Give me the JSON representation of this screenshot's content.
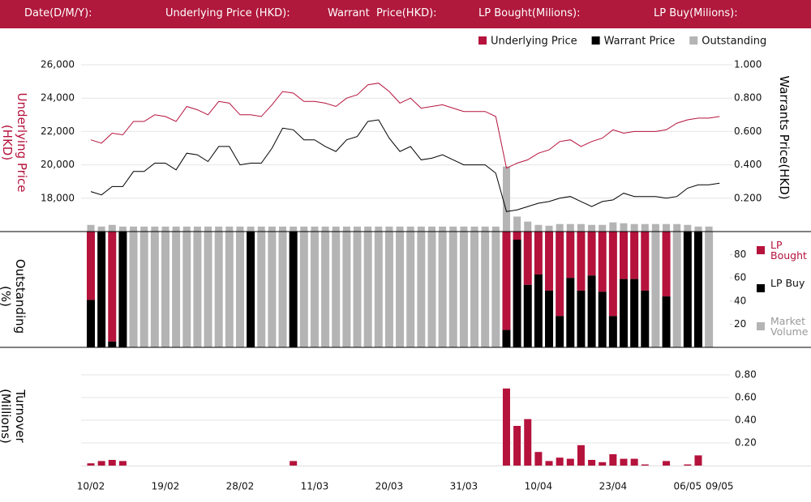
{
  "header": {
    "labels": [
      "Date(D/M/Y):",
      "Underlying Price (HKD):",
      "Warrant  Price(HKD):",
      "LP Bought(Milions):",
      "LP Buy(Milions):"
    ]
  },
  "chart_data": [
    {
      "type": "line",
      "y_label": "Underlying Price (HKD)",
      "y2_label": "Warrants  Price(HKD)",
      "legend": "top-right",
      "grid": true,
      "ylim": [
        16000,
        26000
      ],
      "yticks": [
        {
          "value": 18000,
          "label": "18,000"
        },
        {
          "value": 20000,
          "label": "20,000"
        },
        {
          "value": 22000,
          "label": "22,000"
        },
        {
          "value": 24000,
          "label": "24,000"
        },
        {
          "value": 26000,
          "label": "26,000"
        }
      ],
      "y2lim": [
        0,
        1.0
      ],
      "y2ticks": [
        {
          "value": 0.2,
          "label": "0.200"
        },
        {
          "value": 0.4,
          "label": "0.400"
        },
        {
          "value": 0.6,
          "label": "0.600"
        },
        {
          "value": 0.8,
          "label": "0.800"
        },
        {
          "value": 1.0,
          "label": "1.000"
        }
      ],
      "series": [
        {
          "name": "Underlying Price",
          "color": "#b5123c",
          "values": [
            21500,
            21300,
            21900,
            21800,
            22600,
            22600,
            23000,
            22900,
            22600,
            23500,
            23300,
            23000,
            23800,
            23700,
            23000,
            23000,
            22900,
            23600,
            24400,
            24300,
            23800,
            23800,
            23700,
            23500,
            24000,
            24200,
            24800,
            24900,
            24400,
            23700,
            24000,
            23400,
            23500,
            23600,
            23400,
            23200,
            23200,
            23200,
            22900,
            19800,
            20100,
            20300,
            20700,
            20900,
            21400,
            21500,
            21100,
            21400,
            21600,
            22100,
            21900,
            22000,
            22000,
            22000,
            22100,
            22500,
            22700,
            22800,
            22800,
            22900
          ]
        },
        {
          "name": "Warrant  Price",
          "color": "#000000",
          "axis": "y2",
          "values": [
            0.24,
            0.22,
            0.27,
            0.27,
            0.36,
            0.36,
            0.41,
            0.41,
            0.37,
            0.47,
            0.46,
            0.42,
            0.51,
            0.51,
            0.4,
            0.41,
            0.41,
            0.5,
            0.62,
            0.61,
            0.55,
            0.55,
            0.51,
            0.48,
            0.55,
            0.57,
            0.66,
            0.67,
            0.56,
            0.48,
            0.51,
            0.43,
            0.44,
            0.46,
            0.43,
            0.4,
            0.4,
            0.4,
            0.35,
            0.12,
            0.13,
            0.15,
            0.17,
            0.18,
            0.2,
            0.21,
            0.18,
            0.15,
            0.18,
            0.19,
            0.23,
            0.21,
            0.21,
            0.21,
            0.2,
            0.21,
            0.26,
            0.28,
            0.28,
            0.29
          ]
        },
        {
          "name": "Outstanding",
          "color": "#b4b4b4",
          "axis": "y2",
          "type": "bar",
          "values": [
            0.04,
            0.03,
            0.04,
            0.03,
            0.03,
            0.03,
            0.03,
            0.03,
            0.03,
            0.03,
            0.03,
            0.03,
            0.03,
            0.03,
            0.03,
            0.03,
            0.03,
            0.03,
            0.03,
            0.03,
            0.03,
            0.03,
            0.03,
            0.03,
            0.03,
            0.03,
            0.03,
            0.03,
            0.03,
            0.03,
            0.03,
            0.03,
            0.03,
            0.03,
            0.03,
            0.03,
            0.03,
            0.03,
            0.03,
            0.39,
            0.09,
            0.06,
            0.04,
            0.035,
            0.045,
            0.045,
            0.045,
            0.04,
            0.04,
            0.055,
            0.05,
            0.045,
            0.045,
            0.045,
            0.045,
            0.045,
            0.04,
            0.03,
            0.03,
            null
          ]
        }
      ]
    },
    {
      "type": "stacked_bar",
      "y_label": "Outstanding (%)",
      "legend": "right",
      "ylim": [
        0,
        100
      ],
      "yticks": [
        20,
        40,
        60,
        80
      ],
      "series": [
        {
          "name": "LP Bought",
          "color": "#b5123c",
          "values": [
            59,
            0,
            95,
            0,
            0,
            0,
            0,
            0,
            0,
            0,
            0,
            0,
            0,
            0,
            0,
            0,
            0,
            0,
            0,
            0,
            0,
            0,
            0,
            0,
            0,
            0,
            0,
            0,
            0,
            0,
            0,
            0,
            0,
            0,
            0,
            0,
            0,
            0,
            0,
            85,
            7,
            46,
            37,
            51,
            73,
            40,
            51,
            38,
            52,
            73,
            41,
            41,
            51,
            0,
            56,
            0,
            0,
            0,
            0,
            null
          ]
        },
        {
          "name": "LP Buy",
          "color": "#000000",
          "values": [
            41,
            100,
            5,
            100,
            0,
            0,
            0,
            0,
            0,
            0,
            0,
            0,
            0,
            0,
            0,
            100,
            0,
            0,
            0,
            100,
            0,
            0,
            0,
            0,
            0,
            0,
            0,
            0,
            0,
            0,
            0,
            0,
            0,
            0,
            0,
            0,
            0,
            0,
            0,
            15,
            93,
            54,
            63,
            49,
            27,
            60,
            49,
            62,
            48,
            27,
            59,
            59,
            49,
            0,
            44,
            0,
            100,
            100,
            0,
            null
          ]
        },
        {
          "name": "Market Volume",
          "color": "#b4b4b4",
          "values": [
            0,
            0,
            0,
            0,
            100,
            100,
            100,
            100,
            100,
            100,
            100,
            100,
            100,
            100,
            100,
            0,
            100,
            100,
            100,
            0,
            100,
            100,
            100,
            100,
            100,
            100,
            100,
            100,
            100,
            100,
            100,
            100,
            100,
            100,
            100,
            100,
            100,
            100,
            100,
            0,
            0,
            0,
            0,
            0,
            0,
            0,
            0,
            0,
            0,
            0,
            0,
            0,
            0,
            100,
            0,
            100,
            0,
            0,
            100,
            null
          ]
        }
      ]
    },
    {
      "type": "bar",
      "y_label": "Turnover (Millions)",
      "color": "#b5123c",
      "grid": true,
      "ylim": [
        0,
        0.8
      ],
      "yticks": [
        {
          "value": 0.2,
          "label": "0.20"
        },
        {
          "value": 0.4,
          "label": "0.40"
        },
        {
          "value": 0.6,
          "label": "0.60"
        },
        {
          "value": 0.8,
          "label": "0.80"
        }
      ],
      "categories": [
        "10/02",
        null,
        null,
        null,
        null,
        null,
        null,
        "19/02",
        null,
        null,
        null,
        null,
        null,
        null,
        "28/02",
        null,
        null,
        null,
        null,
        null,
        null,
        "11/03",
        null,
        null,
        null,
        null,
        null,
        null,
        "20/03",
        null,
        null,
        null,
        null,
        null,
        null,
        "31/03",
        null,
        null,
        null,
        null,
        null,
        null,
        "10/04",
        null,
        null,
        null,
        null,
        null,
        null,
        "23/04",
        null,
        null,
        null,
        null,
        null,
        null,
        "06/05",
        null,
        null,
        "09/05"
      ],
      "values": [
        0.02,
        0.04,
        0.05,
        0.04,
        0,
        0,
        0,
        0,
        0,
        0,
        0,
        0,
        0,
        0,
        0,
        0,
        0,
        0,
        0,
        0.04,
        0,
        0,
        0,
        0,
        0,
        0,
        0,
        0,
        0,
        0,
        0,
        0,
        0,
        0,
        0,
        0,
        0,
        0,
        0,
        0.68,
        0.35,
        0.41,
        0.12,
        0.04,
        0.07,
        0.06,
        0.18,
        0.05,
        0.03,
        0.1,
        0.06,
        0.06,
        0.01,
        0,
        0.04,
        0,
        0.01,
        0.09,
        0,
        null
      ]
    }
  ]
}
